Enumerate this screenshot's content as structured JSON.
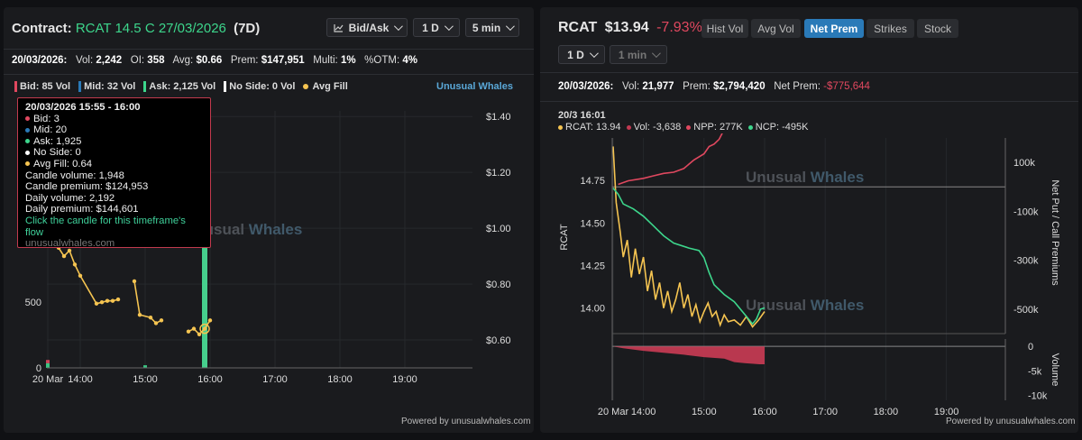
{
  "left": {
    "header": {
      "prefix": "Contract:",
      "contract": "RCAT 14.5 C 27/03/2026",
      "tag": "(7D)"
    },
    "controls": {
      "chart_mode": "Bid/Ask",
      "range": "1 D",
      "interval": "5 min"
    },
    "stats": {
      "date": "20/03/2026:",
      "vol_label": "Vol:",
      "vol": "2,242",
      "oi_label": "OI:",
      "oi": "358",
      "avg_label": "Avg:",
      "avg": "$0.66",
      "prem_label": "Prem:",
      "prem": "$147,951",
      "multi_label": "Multi:",
      "multi": "1%",
      "otm_label": "%OTM:",
      "otm": "4%"
    },
    "legend": {
      "bid": "Bid: 85 Vol",
      "mid": "Mid: 32 Vol",
      "ask": "Ask: 2,125 Vol",
      "noside": "No Side: 0 Vol",
      "avgfill": "Avg Fill"
    },
    "brand": "Unusual Whales",
    "watermark": {
      "a": "Unusual",
      "b": "Whales"
    },
    "tooltip": {
      "title": "20/03/2026 15:55 - 16:00",
      "bid": "Bid: 3",
      "mid": "Mid: 20",
      "ask": "Ask: 1,925",
      "noside": "No Side: 0",
      "avgfill": "Avg Fill: 0.64",
      "candle_volume": "Candle volume: 1,948",
      "candle_premium": "Candle premium: $124,953",
      "daily_volume": "Daily volume: 2,192",
      "daily_premium": "Daily premium: $144,601",
      "link": "Click the candle for this timeframe's flow",
      "site": "unusualwhales.com"
    },
    "powered": "Powered by unusualwhales.com"
  },
  "right": {
    "header": {
      "ticker": "RCAT",
      "price": "$13.94",
      "change": "-7.93%"
    },
    "tabs": [
      "Hist Vol",
      "Avg Vol",
      "Net Prem",
      "Strikes",
      "Stock"
    ],
    "active_tab": "Net Prem",
    "controls": {
      "range": "1 D",
      "interval": "1 min"
    },
    "stats": {
      "date": "20/03/2026:",
      "vol_label": "Vol:",
      "vol": "21,977",
      "prem_label": "Prem:",
      "prem": "$2,794,420",
      "netprem_label": "Net Prem:",
      "netprem": "-$775,644"
    },
    "legend": {
      "time": "20/3 16:01",
      "rcat": "RCAT: 13.94",
      "vol": "Vol: -3,638",
      "npp": "NPP: 277K",
      "ncp": "NCP: -495K"
    },
    "watermark": {
      "a": "Unusual",
      "b": "Whales"
    },
    "powered": "Powered by unusualwhales.com"
  },
  "colors": {
    "green": "#3dd68c",
    "red": "#e0485f",
    "yellow": "#f5c451",
    "blue": "#2a7ab8",
    "teal": "#1fb27a",
    "crimson": "#c23a52"
  },
  "chart_data": [
    {
      "type": "bar",
      "title": "RCAT 14.5 C 27/03/2026 Bid/Ask volume (5 min)",
      "x_ticks": [
        "20 Mar",
        "14:00",
        "15:00",
        "16:00",
        "17:00",
        "18:00",
        "19:00"
      ],
      "y_left_ticks": [
        "0",
        "500",
        "1000"
      ],
      "y_right_ticks": [
        "$0.60",
        "$0.80",
        "$1.00",
        "$1.20",
        "$1.40"
      ],
      "ylim_left": [
        0,
        1950
      ],
      "ylim_right": [
        0.5,
        1.42
      ],
      "volume_bars": [
        {
          "time": "13:30",
          "side": "ask",
          "value": 35
        },
        {
          "time": "13:30",
          "side": "bid",
          "value": 25
        },
        {
          "time": "15:00",
          "side": "ask",
          "value": 20
        },
        {
          "time": "15:55",
          "side": "ask",
          "value": 1925
        },
        {
          "time": "15:55",
          "side": "mid",
          "value": 20
        },
        {
          "time": "15:55",
          "side": "bid",
          "value": 3
        }
      ],
      "avg_fill_series": [
        {
          "t": "13:30",
          "v": 1.0
        },
        {
          "t": "13:35",
          "v": 0.97
        },
        {
          "t": "13:40",
          "v": 0.93
        },
        {
          "t": "13:45",
          "v": 0.9
        },
        {
          "t": "13:50",
          "v": 0.92
        },
        {
          "t": "13:55",
          "v": 0.87
        },
        {
          "t": "14:00",
          "v": 0.83
        },
        {
          "t": "14:15",
          "v": 0.73
        },
        {
          "t": "14:20",
          "v": 0.735
        },
        {
          "t": "14:25",
          "v": 0.74
        },
        {
          "t": "14:30",
          "v": 0.74
        },
        {
          "t": "14:35",
          "v": 0.745
        },
        {
          "t": "14:50",
          "v": 0.81
        },
        {
          "t": "14:55",
          "v": 0.69
        },
        {
          "t": "15:05",
          "v": 0.68
        },
        {
          "t": "15:10",
          "v": 0.66
        },
        {
          "t": "15:15",
          "v": 0.67
        },
        {
          "t": "15:40",
          "v": 0.63
        },
        {
          "t": "15:45",
          "v": 0.64
        },
        {
          "t": "15:50",
          "v": 0.62
        },
        {
          "t": "15:55",
          "v": 0.64
        },
        {
          "t": "16:00",
          "v": 0.67
        }
      ]
    },
    {
      "type": "line",
      "title": "RCAT Net Premium (1 min)",
      "x_ticks": [
        "20 Mar",
        "14:00",
        "15:00",
        "16:00",
        "17:00",
        "18:00",
        "19:00"
      ],
      "y_price_ticks": [
        "14.00",
        "14.25",
        "14.50",
        "14.75"
      ],
      "y_premium_ticks": [
        "100k",
        "-100k",
        "-300k",
        "-500k"
      ],
      "y_premium_label": "Net Put / Call Premiums",
      "y_price_label": "RCAT",
      "price_ylim": [
        13.85,
        15.0
      ],
      "premium_ylim": [
        -600000,
        200000
      ],
      "series": [
        {
          "name": "RCAT",
          "color": "yellow",
          "points": [
            [
              "13:30",
              14.95
            ],
            [
              "13:33",
              14.62
            ],
            [
              "13:37",
              14.45
            ],
            [
              "13:40",
              14.3
            ],
            [
              "13:44",
              14.4
            ],
            [
              "13:48",
              14.18
            ],
            [
              "13:52",
              14.35
            ],
            [
              "13:56",
              14.2
            ],
            [
              "14:00",
              14.3
            ],
            [
              "14:04",
              14.1
            ],
            [
              "14:08",
              14.22
            ],
            [
              "14:12",
              14.05
            ],
            [
              "14:16",
              14.15
            ],
            [
              "14:20",
              14.0
            ],
            [
              "14:24",
              14.1
            ],
            [
              "14:28",
              13.98
            ],
            [
              "14:32",
              14.05
            ],
            [
              "14:36",
              14.15
            ],
            [
              "14:40",
              14.0
            ],
            [
              "14:44",
              14.08
            ],
            [
              "14:48",
              13.95
            ],
            [
              "14:52",
              14.02
            ],
            [
              "14:56",
              13.92
            ],
            [
              "15:00",
              13.98
            ],
            [
              "15:04",
              14.03
            ],
            [
              "15:08",
              13.95
            ],
            [
              "15:12",
              13.98
            ],
            [
              "15:16",
              13.9
            ],
            [
              "15:20",
              13.96
            ],
            [
              "15:24",
              13.92
            ],
            [
              "15:30",
              13.93
            ],
            [
              "15:36",
              13.9
            ],
            [
              "15:42",
              13.95
            ],
            [
              "15:48",
              13.89
            ],
            [
              "15:54",
              13.93
            ],
            [
              "16:00",
              13.98
            ]
          ]
        },
        {
          "name": "NPP",
          "color": "red",
          "points": [
            [
              "13:35",
              10000
            ],
            [
              "13:45",
              25000
            ],
            [
              "14:00",
              35000
            ],
            [
              "14:10",
              45000
            ],
            [
              "14:20",
              55000
            ],
            [
              "14:30",
              60000
            ],
            [
              "14:40",
              75000
            ],
            [
              "14:50",
              110000
            ],
            [
              "15:00",
              135000
            ],
            [
              "15:05",
              165000
            ],
            [
              "15:10",
              175000
            ],
            [
              "15:15",
              195000
            ],
            [
              "15:20",
              235000
            ],
            [
              "15:25",
              255000
            ],
            [
              "15:30",
              260000
            ],
            [
              "15:40",
              270000
            ],
            [
              "15:50",
              275000
            ],
            [
              "16:00",
              277000
            ]
          ]
        },
        {
          "name": "NCP",
          "color": "green",
          "points": [
            [
              "13:30",
              -5000
            ],
            [
              "13:35",
              -30000
            ],
            [
              "13:40",
              -70000
            ],
            [
              "13:50",
              -90000
            ],
            [
              "14:00",
              -120000
            ],
            [
              "14:10",
              -160000
            ],
            [
              "14:20",
              -200000
            ],
            [
              "14:30",
              -230000
            ],
            [
              "14:45",
              -250000
            ],
            [
              "14:55",
              -260000
            ],
            [
              "15:00",
              -290000
            ],
            [
              "15:05",
              -350000
            ],
            [
              "15:10",
              -400000
            ],
            [
              "15:20",
              -440000
            ],
            [
              "15:30",
              -470000
            ],
            [
              "15:40",
              -520000
            ],
            [
              "15:48",
              -560000
            ],
            [
              "15:52",
              -540000
            ],
            [
              "15:56",
              -500000
            ],
            [
              "16:00",
              -495000
            ]
          ]
        }
      ],
      "volume_panel": {
        "ylabel": "Volume",
        "y_ticks": [
          "0",
          "-5k",
          "-10k"
        ],
        "ylim": [
          -11000,
          1500
        ],
        "cumulative_volume": [
          [
            "13:30",
            0
          ],
          [
            "13:40",
            -400
          ],
          [
            "14:00",
            -900
          ],
          [
            "14:20",
            -1300
          ],
          [
            "14:40",
            -1700
          ],
          [
            "15:00",
            -2200
          ],
          [
            "15:20",
            -2500
          ],
          [
            "15:30",
            -3200
          ],
          [
            "15:40",
            -3400
          ],
          [
            "15:55",
            -3638
          ],
          [
            "16:00",
            -3638
          ]
        ]
      }
    }
  ]
}
